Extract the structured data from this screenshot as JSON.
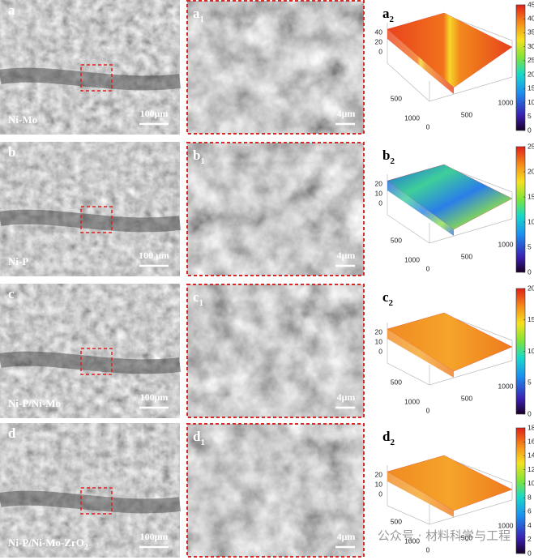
{
  "panels": [
    {
      "sem": {
        "label": "a",
        "sample": "Ni-Mo",
        "scale_bar": "100μm"
      },
      "zoom": {
        "label": "a",
        "sub": "1",
        "scale_bar": "4μm"
      },
      "surface": {
        "label": "a",
        "sub": "2",
        "z_ticks": [
          0,
          20,
          40
        ],
        "left_ticks": [
          500,
          1000
        ],
        "bottom_ticks": [
          0,
          500,
          1000
        ],
        "colorbar_ticks": [
          0,
          5,
          10,
          15,
          20,
          25,
          30,
          35,
          40,
          45
        ]
      }
    },
    {
      "sem": {
        "label": "b",
        "sample": "Ni-P",
        "scale_bar": "100 μm"
      },
      "zoom": {
        "label": "b",
        "sub": "1",
        "scale_bar": "4μm"
      },
      "surface": {
        "label": "b",
        "sub": "2",
        "z_ticks": [
          0,
          10,
          20
        ],
        "left_ticks": [
          500,
          1000
        ],
        "bottom_ticks": [
          0,
          500,
          1000
        ],
        "colorbar_ticks": [
          0,
          5,
          10,
          15,
          20,
          25
        ]
      }
    },
    {
      "sem": {
        "label": "c",
        "sample": "Ni-P/Ni-Mo",
        "scale_bar": "100μm"
      },
      "zoom": {
        "label": "c",
        "sub": "1",
        "scale_bar": "4μm"
      },
      "surface": {
        "label": "c",
        "sub": "2",
        "z_ticks": [
          0,
          10,
          20
        ],
        "left_ticks": [
          500,
          1000
        ],
        "bottom_ticks": [
          0,
          500,
          1000
        ],
        "colorbar_ticks": [
          0,
          5,
          10,
          15,
          20
        ]
      }
    },
    {
      "sem": {
        "label": "d",
        "sample": "Ni-P/Ni-Mo-ZrO",
        "sample_sub": "2",
        "scale_bar": "100μm"
      },
      "zoom": {
        "label": "d",
        "sub": "1",
        "scale_bar": "4μm"
      },
      "surface": {
        "label": "d",
        "sub": "2",
        "z_ticks": [
          0,
          10,
          20
        ],
        "left_ticks": [
          500,
          1000
        ],
        "bottom_ticks": [
          0,
          500,
          1000
        ],
        "colorbar_ticks": [
          0,
          2,
          4,
          6,
          8,
          10,
          12,
          14,
          16,
          18
        ]
      }
    }
  ],
  "watermark": "公众号 · 材料科学与工程"
}
